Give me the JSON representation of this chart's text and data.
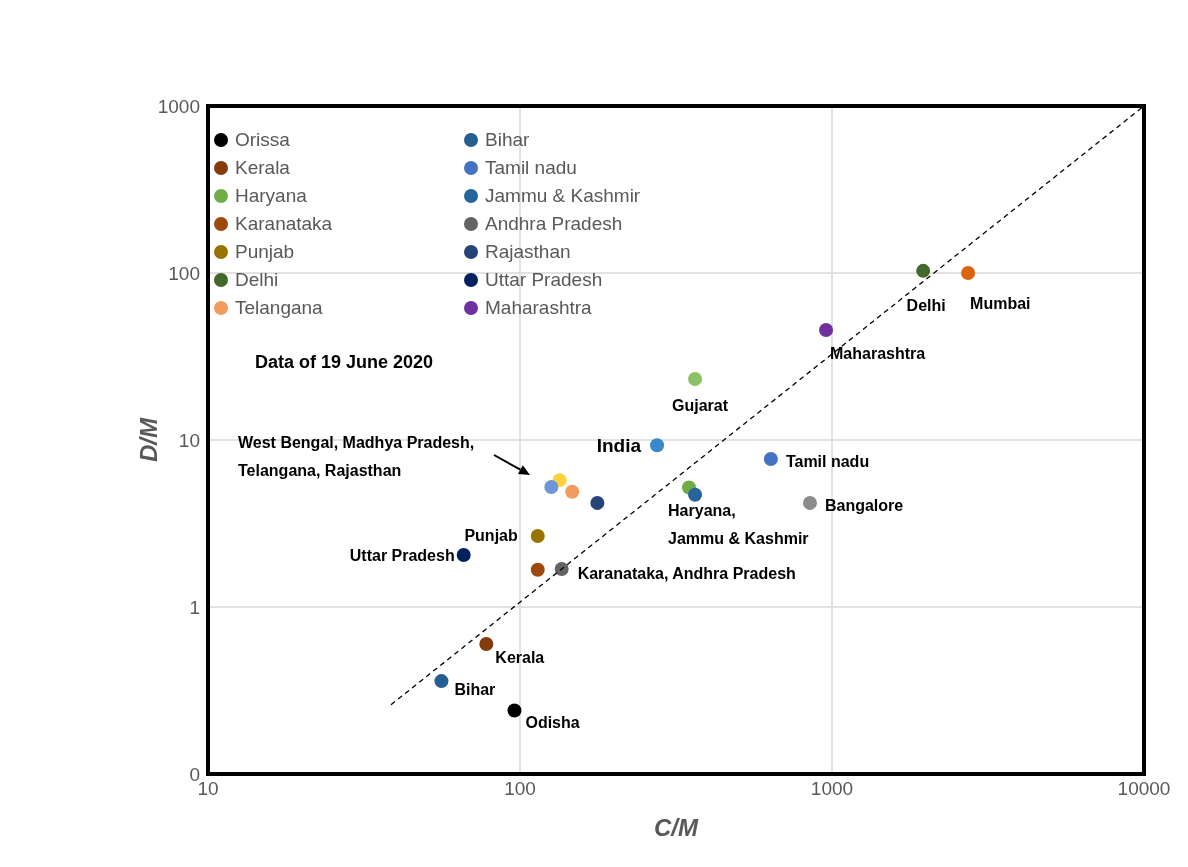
{
  "chart_data": {
    "type": "scatter",
    "title": "Data of 19 June 2020",
    "xlabel": "C/M",
    "ylabel": "D/M",
    "log": "xy",
    "grid": true,
    "legend": "top left",
    "marker": "circle",
    "xlim": [
      10,
      10000
    ],
    "xticks": [
      10,
      100,
      1000,
      10000
    ],
    "ylim": [
      0.1,
      1000
    ],
    "yticks": [
      {
        "value": 0.1,
        "label": "0"
      },
      1,
      10,
      100,
      1000
    ],
    "series": [
      {
        "name": "Orissa",
        "color": "#000000",
        "x": [
          96
        ],
        "values": [
          0.24
        ]
      },
      {
        "name": "Kerala",
        "color": "#843c0c",
        "x": [
          78
        ],
        "values": [
          0.6
        ]
      },
      {
        "name": "Haryana",
        "color": "#70ad47",
        "x": [
          348
        ],
        "values": [
          5.2
        ]
      },
      {
        "name": "Karanataka",
        "color": "#9e480e",
        "x": [
          114
        ],
        "values": [
          1.67
        ]
      },
      {
        "name": "Punjab",
        "color": "#997300",
        "x": [
          114
        ],
        "values": [
          2.66
        ]
      },
      {
        "name": "Delhi",
        "color": "#43682b",
        "x": [
          1960
        ],
        "values": [
          103
        ]
      },
      {
        "name": "Telangana",
        "color": "#f19b5f",
        "x": [
          147
        ],
        "values": [
          4.9
        ]
      },
      {
        "name": "Bihar",
        "color": "#255e91",
        "x": [
          56
        ],
        "values": [
          0.36
        ]
      },
      {
        "name": "Tamil nadu",
        "color": "#4472c4",
        "x": [
          637
        ],
        "values": [
          7.7
        ]
      },
      {
        "name": "Jammu & Kashmir",
        "color": "#26649c",
        "x": [
          364
        ],
        "values": [
          4.7
        ]
      },
      {
        "name": "Andhra Pradesh",
        "color": "#636363",
        "x": [
          136
        ],
        "values": [
          1.69
        ]
      },
      {
        "name": "Rajasthan",
        "color": "#264478",
        "x": [
          177
        ],
        "values": [
          4.2
        ]
      },
      {
        "name": "Uttar Pradesh",
        "color": "#002060",
        "x": [
          66
        ],
        "values": [
          2.05
        ]
      },
      {
        "name": "Maharashtra",
        "color": "#7030a0",
        "x": [
          957
        ],
        "values": [
          45.6
        ]
      },
      {
        "color": "#8cc168",
        "x": [
          364
        ],
        "values": [
          23.2
        ]
      },
      {
        "color": "#3a87cc",
        "x": [
          275
        ],
        "values": [
          9.3
        ]
      },
      {
        "color": "#dd6312",
        "x": [
          2730
        ],
        "values": [
          100
        ]
      },
      {
        "color": "#8c8c8c",
        "x": [
          850
        ],
        "values": [
          4.2
        ]
      },
      {
        "color": "#ffd13b",
        "x": [
          134
        ],
        "values": [
          5.75
        ]
      },
      {
        "color": "#6d95d8",
        "x": [
          126
        ],
        "values": [
          5.23
        ]
      },
      {
        "type": "line",
        "color": "#000000",
        "line_style": "dashed",
        "marker": "none",
        "x": [
          38.6,
          10000
        ],
        "values": [
          0.26,
          1000
        ]
      }
    ],
    "annotations": [
      {
        "text": "Mumbai",
        "x": 2730,
        "y": 100
      },
      {
        "text": "Delhi",
        "x": 1960,
        "y": 103
      },
      {
        "text": "Maharashtra",
        "x": 957,
        "y": 45.6
      },
      {
        "text": "Gujarat",
        "x": 364,
        "y": 23.2
      },
      {
        "text": "India",
        "x": 275,
        "y": 9.3
      },
      {
        "text": "Tamil nadu",
        "x": 637,
        "y": 7.7
      },
      {
        "text": "Bangalore",
        "x": 850,
        "y": 4.2
      },
      {
        "text": "Haryana,\nJammu & Kashmir",
        "x": 364,
        "y": 4.7
      },
      {
        "text": "Karanataka, Andhra Pradesh",
        "x": 136,
        "y": 1.69
      },
      {
        "text": "Punjab",
        "x": 114,
        "y": 2.66
      },
      {
        "text": "Uttar Pradesh",
        "x": 66,
        "y": 2.05
      },
      {
        "text": "Kerala",
        "x": 78,
        "y": 0.6
      },
      {
        "text": "Bihar",
        "x": 56,
        "y": 0.36
      },
      {
        "text": "Odisha",
        "x": 96,
        "y": 0.24
      },
      "West Bengal, Madhya Pradesh,\nTelangana, Rajasthan"
    ]
  }
}
